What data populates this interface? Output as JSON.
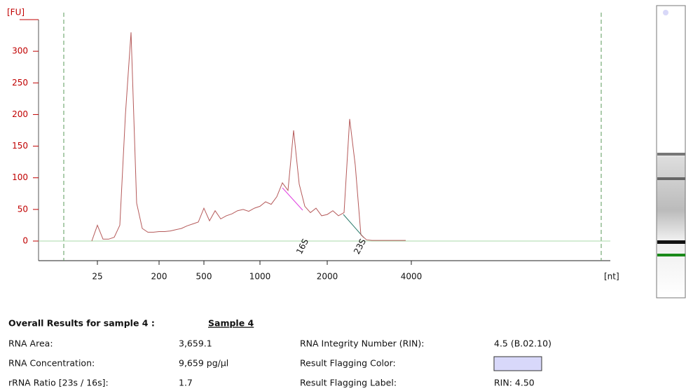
{
  "chart_data": {
    "type": "line",
    "y_unit_label": "[FU]",
    "x_unit_label": "[nt]",
    "categories": [
      null,
      null,
      null,
      null,
      null,
      null,
      null,
      null,
      null,
      null,
      "25",
      null,
      null,
      null,
      null,
      null,
      null,
      null,
      null,
      null,
      null,
      "200",
      null,
      null,
      null,
      null,
      null,
      null,
      null,
      "500",
      null,
      null,
      null,
      null,
      null,
      null,
      null,
      null,
      null,
      "1000",
      null,
      null,
      null,
      null,
      null,
      null,
      null,
      null,
      null,
      null,
      null,
      "2000",
      null,
      null,
      null,
      null,
      null,
      null,
      null,
      null,
      null,
      null,
      null,
      null,
      null,
      null,
      "4000",
      null,
      null,
      null,
      null,
      null,
      null,
      null,
      null,
      null,
      null,
      null,
      null,
      null,
      null,
      null,
      null,
      null,
      null,
      null,
      null,
      null,
      null,
      null,
      null,
      null,
      null,
      null,
      null,
      null,
      null,
      null,
      null,
      null,
      null,
      null
    ],
    "values": [
      null,
      null,
      null,
      null,
      null,
      null,
      null,
      null,
      null,
      0,
      25,
      3,
      3,
      6,
      25,
      200,
      330,
      60,
      20,
      14,
      14,
      15,
      15,
      16,
      18,
      20,
      24,
      27,
      30,
      52,
      32,
      48,
      35,
      40,
      43,
      48,
      50,
      47,
      52,
      55,
      62,
      58,
      70,
      92,
      80,
      175,
      90,
      55,
      45,
      52,
      40,
      42,
      48,
      40,
      45,
      193,
      120,
      10,
      2,
      1,
      1,
      1,
      1,
      1,
      1,
      1,
      null,
      null,
      null,
      null,
      null,
      null,
      null,
      null,
      null,
      null,
      null,
      null,
      null,
      null,
      null,
      null,
      null,
      null,
      null,
      null,
      null,
      null,
      null,
      null,
      null,
      null,
      null,
      null,
      null,
      null,
      null,
      null,
      null,
      null,
      null,
      null
    ],
    "color": "#b55a5a",
    "ylim": [
      -31,
      350
    ],
    "yticks": [
      0,
      50,
      100,
      150,
      200,
      250,
      300
    ],
    "annotations": [
      {
        "text": "16S",
        "color": "#e040e0"
      },
      {
        "text": "23S",
        "color": "#2a7a6a"
      }
    ]
  },
  "results": {
    "heading": "Overall Results for sample 4 :",
    "sample": "Sample 4",
    "rows": [
      [
        "RNA Area:",
        "3,659.1",
        "RNA Integrity Number (RIN):",
        "4.5   (B.02.10)"
      ],
      [
        "RNA Concentration:",
        "9,659 pg/µl",
        "Result Flagging Color:",
        null
      ],
      [
        "rRNA Ratio [23s / 16s]:",
        "1.7",
        "Result Flagging Label:",
        "RIN: 4.50"
      ]
    ],
    "flag_color": "#d8d8fa"
  }
}
